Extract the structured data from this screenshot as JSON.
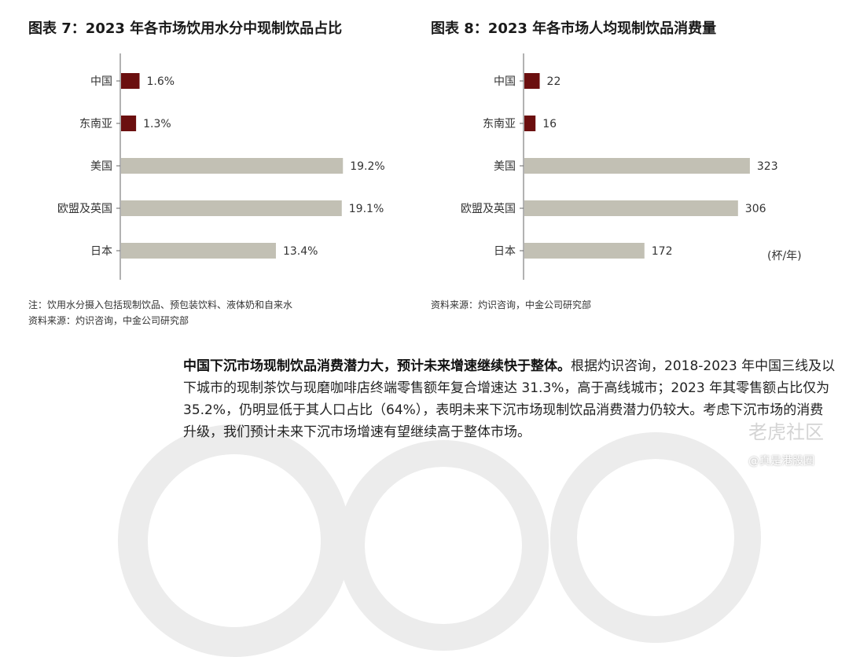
{
  "figure7": {
    "title": "图表 7：2023 年各市场饮用水分中现制饮品占比",
    "note": "注：饮用水分摄入包括现制饮品、预包装饮料、液体奶和自来水",
    "source": "资料来源：灼识咨询，中金公司研究部",
    "chart_data": {
      "type": "bar",
      "orientation": "horizontal",
      "title": "2023 年各市场饮用水分中现制饮品占比",
      "categories": [
        "中国",
        "东南亚",
        "美国",
        "欧盟及英国",
        "日本"
      ],
      "values": [
        1.6,
        1.3,
        19.2,
        19.1,
        13.4
      ],
      "labels": [
        "1.6%",
        "1.3%",
        "19.2%",
        "19.1%",
        "13.4%"
      ],
      "unit": "%",
      "xlim": [
        0,
        20
      ],
      "highlight_color": "#6b0f0f",
      "base_color": "#c2c0b4",
      "highlight_count": 2
    }
  },
  "figure8": {
    "title": "图表 8：2023 年各市场人均现制饮品消费量",
    "source": "资料来源：灼识咨询，中金公司研究部",
    "chart_data": {
      "type": "bar",
      "orientation": "horizontal",
      "title": "2023 年各市场人均现制饮品消费量",
      "categories": [
        "中国",
        "东南亚",
        "美国",
        "欧盟及英国",
        "日本"
      ],
      "values": [
        22,
        16,
        323,
        306,
        172
      ],
      "labels": [
        "22",
        "16",
        "323",
        "306",
        "172"
      ],
      "unit_label": "(杯/年)",
      "xlim": [
        0,
        340
      ],
      "highlight_color": "#6b0f0f",
      "base_color": "#c2c0b4",
      "highlight_count": 2
    }
  },
  "body": {
    "lead": "中国下沉市场现制饮品消费潜力大，预计未来增速继续快于整体。",
    "text": "根据灼识咨询，2018-2023 年中国三线及以下城市的现制茶饮与现磨咖啡店终端零售额年复合增速达 31.3%，高于高线城市；2023 年其零售额占比仅为 35.2%，仍明显低于其人口占比（64%），表明未来下沉市场现制饮品消费潜力仍较大。考虑下沉市场的消费升级，我们预计未来下沉市场增速有望继续高于整体市场。"
  },
  "watermark": {
    "main": "老虎社区",
    "sub": "@真是港股圈"
  }
}
